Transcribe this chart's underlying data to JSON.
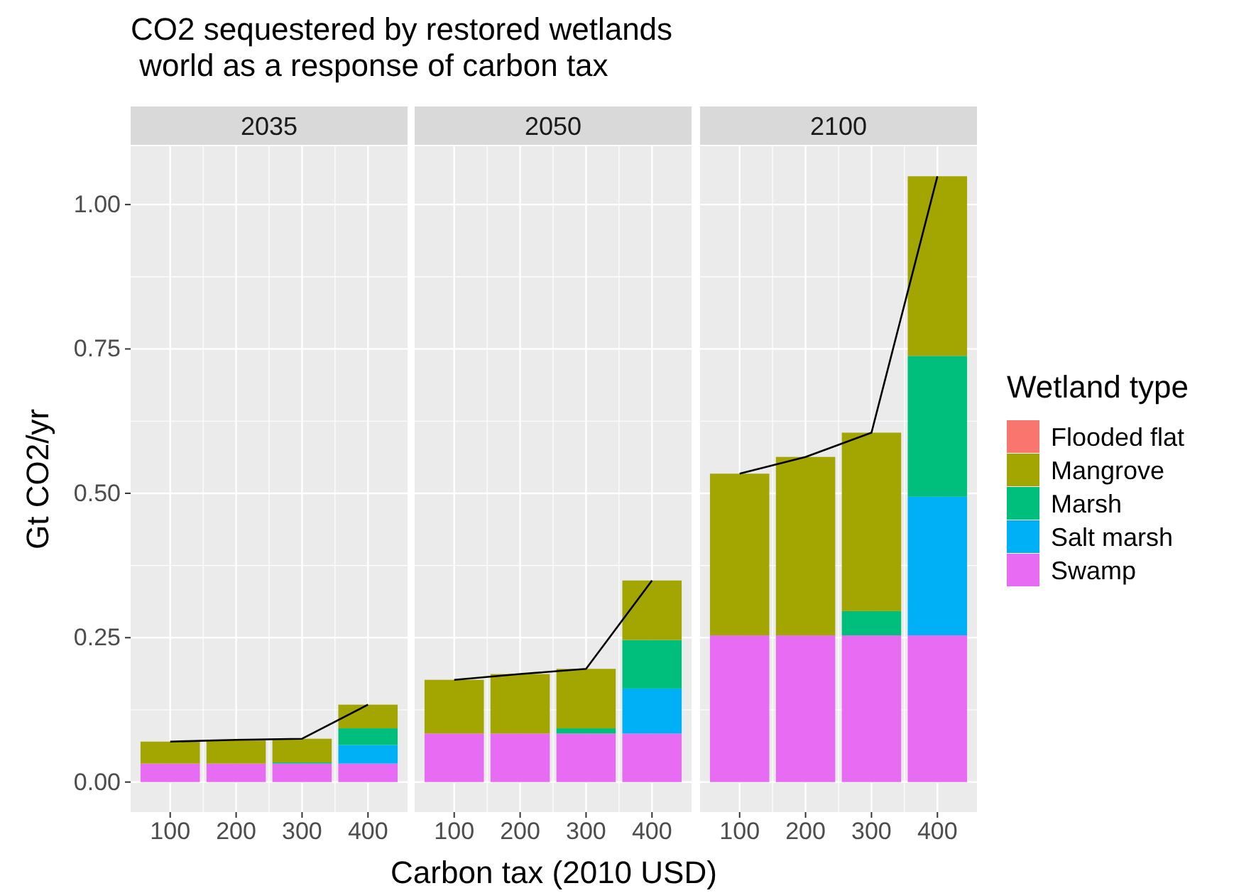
{
  "chart_data": [
    {
      "type": "bar",
      "title": "CO2 sequestered by restored wetlands\n world as a response of carbon tax",
      "subtitle": "2035",
      "ylabel": "Gt CO2/yr",
      "categories": [
        "100",
        "200",
        "300",
        "400"
      ],
      "stacked": true,
      "ylim": [
        -0.052,
        1.101
      ],
      "yticks": [
        {
          "value": 0,
          "label": "0.00"
        },
        {
          "value": 0.25,
          "label": "0.25"
        },
        {
          "value": 0.5,
          "label": "0.50"
        },
        {
          "value": 0.75,
          "label": "0.75"
        },
        {
          "value": 1,
          "label": "1.00"
        }
      ],
      "grid": true,
      "series": [
        {
          "color": "#e76bf3",
          "values": [
            0.032,
            0.032,
            0.032,
            0.032
          ]
        },
        {
          "color": "#00b0f6",
          "values": [
            0,
            0,
            0,
            0.032
          ]
        },
        {
          "color": "#00bf7d",
          "values": [
            0,
            0,
            0.002,
            0.029
          ]
        },
        {
          "color": "#a3a500",
          "values": [
            0.038,
            0.041,
            0.041,
            0.041
          ]
        },
        {
          "color": "#f8766d",
          "values": [
            0,
            0,
            0,
            0
          ]
        },
        {
          "type": "line",
          "color": "#000000",
          "values": [
            0.07,
            0.073,
            0.075,
            0.134
          ]
        }
      ]
    },
    {
      "type": "bar",
      "subtitle": "2050",
      "xlabel": "Carbon tax (2010 USD)",
      "categories": [
        "100",
        "200",
        "300",
        "400"
      ],
      "stacked": true,
      "ylim": [
        -0.052,
        1.101
      ],
      "yticks": [
        0,
        0.25,
        0.5,
        0.75,
        1
      ],
      "tick_labels": "x",
      "grid": true,
      "series": [
        {
          "color": "#e76bf3",
          "values": [
            0.084,
            0.084,
            0.084,
            0.084
          ]
        },
        {
          "color": "#00b0f6",
          "values": [
            0,
            0,
            0,
            0.078
          ]
        },
        {
          "color": "#00bf7d",
          "values": [
            0,
            0,
            0.009,
            0.084
          ]
        },
        {
          "color": "#a3a500",
          "values": [
            0.093,
            0.103,
            0.103,
            0.103
          ]
        },
        {
          "color": "#f8766d",
          "values": [
            0,
            0,
            0,
            0
          ]
        },
        {
          "type": "line",
          "color": "#000000",
          "values": [
            0.177,
            0.187,
            0.196,
            0.349
          ]
        }
      ]
    },
    {
      "type": "bar",
      "subtitle": "2100",
      "categories": [
        "100",
        "200",
        "300",
        "400"
      ],
      "stacked": true,
      "ylim": [
        -0.052,
        1.101
      ],
      "yticks": [
        0,
        0.25,
        0.5,
        0.75,
        1
      ],
      "tick_labels": "x",
      "grid": true,
      "legend": "right",
      "legend_title": "Wetland type",
      "series": [
        {
          "name": "Swamp",
          "color": "#e76bf3",
          "values": [
            0.254,
            0.254,
            0.254,
            0.254
          ]
        },
        {
          "name": "Salt marsh",
          "color": "#00b0f6",
          "values": [
            0,
            0,
            0,
            0.24
          ]
        },
        {
          "name": "Marsh",
          "color": "#00bf7d",
          "values": [
            0,
            0,
            0.042,
            0.244
          ]
        },
        {
          "name": "Mangrove",
          "color": "#a3a500",
          "values": [
            0.28,
            0.309,
            0.309,
            0.311
          ]
        },
        {
          "name": "Flooded flat",
          "color": "#f8766d",
          "values": [
            0,
            0,
            0,
            0
          ]
        },
        {
          "type": "line",
          "color": "#000000",
          "values": [
            0.534,
            0.563,
            0.605,
            1.049
          ]
        }
      ]
    }
  ]
}
